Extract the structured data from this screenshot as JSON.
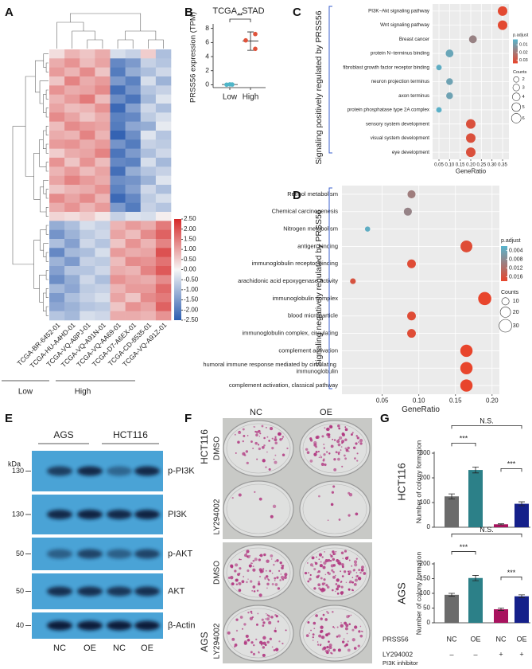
{
  "chart_data": [
    {
      "type": "heatmap",
      "label": "A",
      "categories": [
        "TCGA-BR-6452-01",
        "TCGA-HU-A4HD-01",
        "TCGA-VQ-A8PJ-01",
        "TCGA-VQ-A91N-01",
        "TCGA-VQ-AA69-01",
        "TCGA-D7-A6EX-01",
        "TCGA-CD-8535-01",
        "TCGA-VQ-A91Z-01"
      ],
      "groups": [
        "Low",
        "High"
      ],
      "values": [
        [
          0.3,
          0.8,
          0.6,
          0.9,
          -0.4,
          -0.6,
          0.5,
          -0.9
        ],
        [
          0.9,
          1.2,
          0.7,
          1.0,
          -1.8,
          -1.5,
          -0.6,
          -0.8
        ],
        [
          1.1,
          0.8,
          1.3,
          0.6,
          -2.0,
          -1.2,
          -0.9,
          -0.5
        ],
        [
          0.6,
          1.4,
          0.9,
          1.1,
          -1.5,
          -1.9,
          -0.4,
          -1.1
        ],
        [
          1.2,
          0.9,
          1.0,
          1.3,
          -2.2,
          -1.6,
          -0.8,
          -0.6
        ],
        [
          0.8,
          1.1,
          1.5,
          0.7,
          -1.7,
          -2.1,
          -1.0,
          -0.3
        ],
        [
          1.0,
          0.7,
          0.8,
          1.2,
          -2.3,
          -1.4,
          -0.5,
          -0.9
        ],
        [
          1.3,
          1.0,
          0.6,
          0.9,
          -1.9,
          -1.8,
          -0.7,
          -0.4
        ],
        [
          0.7,
          1.3,
          1.1,
          1.0,
          -2.0,
          -1.3,
          -1.2,
          -0.2
        ],
        [
          0.9,
          0.8,
          1.4,
          0.8,
          -2.4,
          -1.7,
          -0.3,
          -0.8
        ],
        [
          1.1,
          1.2,
          0.9,
          1.1,
          -1.6,
          -2.0,
          -0.6,
          -0.7
        ],
        [
          0.5,
          0.9,
          1.0,
          1.4,
          -2.1,
          -1.5,
          -0.9,
          -0.5
        ],
        [
          1.2,
          0.6,
          1.2,
          0.7,
          -1.8,
          -1.9,
          -0.4,
          -1.0
        ],
        [
          0.8,
          1.1,
          0.7,
          1.0,
          -2.2,
          -1.2,
          -0.8,
          -0.6
        ],
        [
          1.0,
          1.4,
          1.1,
          0.9,
          -1.7,
          -1.6,
          -1.1,
          -0.3
        ],
        [
          0.6,
          0.8,
          0.9,
          1.2,
          -1.9,
          -1.4,
          -0.5,
          -0.9
        ],
        [
          1.3,
          1.0,
          1.3,
          0.8,
          -2.3,
          -1.8,
          -0.7,
          -0.4
        ],
        [
          0.9,
          1.2,
          0.8,
          1.1,
          -1.5,
          -2.0,
          -0.6,
          -0.8
        ],
        [
          0.4,
          0.3,
          0.5,
          0.2,
          -0.6,
          -0.3,
          -0.4,
          0.1
        ],
        [
          -1.2,
          -0.9,
          -0.4,
          -0.6,
          0.8,
          1.1,
          0.9,
          1.5
        ],
        [
          -1.6,
          -1.1,
          -0.7,
          -0.5,
          1.0,
          0.7,
          1.3,
          1.8
        ],
        [
          -0.9,
          -1.4,
          -0.5,
          -0.8,
          0.6,
          1.2,
          0.8,
          1.4
        ],
        [
          -1.8,
          -1.0,
          -0.9,
          -0.4,
          1.1,
          0.9,
          1.0,
          2.0
        ],
        [
          -1.1,
          -1.5,
          -0.6,
          -0.7,
          0.7,
          1.3,
          1.2,
          1.6
        ],
        [
          -1.4,
          -0.8,
          -0.8,
          -0.5,
          0.9,
          0.8,
          1.4,
          1.9
        ],
        [
          -1.7,
          -1.2,
          -0.5,
          -0.9,
          1.2,
          1.0,
          0.9,
          1.3
        ],
        [
          -1.0,
          -1.3,
          -0.7,
          -0.6,
          0.8,
          1.1,
          1.1,
          1.7
        ],
        [
          -1.5,
          -0.9,
          -0.6,
          -0.4,
          1.0,
          0.6,
          1.3,
          1.5
        ],
        [
          -1.3,
          -1.1,
          -0.8,
          -0.7,
          0.6,
          1.2,
          1.0,
          1.8
        ],
        [
          -0.8,
          -1.0,
          -0.4,
          -0.5,
          0.9,
          0.9,
          0.8,
          1.2
        ]
      ],
      "clim": [
        -2.5,
        2.5
      ],
      "cticks": [
        {
          "value": 2.5,
          "label": "2.50"
        },
        {
          "value": 2,
          "label": "2.00"
        },
        {
          "value": 1.5,
          "label": "1.50"
        },
        {
          "value": 1,
          "label": "1.00"
        },
        {
          "value": 0.5,
          "label": "0.50"
        },
        {
          "value": 0,
          "label": "0.00"
        },
        {
          "value": -0.5,
          "label": "-0.50"
        },
        {
          "value": -1,
          "label": "-1.00"
        },
        {
          "value": -1.5,
          "label": "-1.50"
        },
        {
          "value": -2,
          "label": "-2.00"
        },
        {
          "value": -2.5,
          "label": "-2.50"
        }
      ],
      "colors": [
        "#2c5db0",
        "#f6f6f6",
        "#d62828"
      ]
    },
    {
      "type": "dot",
      "label": "B",
      "title": "TCGA_STAD",
      "ylabel": "PRSS56 expression (TPM)",
      "categories": [
        "Low",
        "High"
      ],
      "points": [
        [
          0.02,
          0.04,
          0.06
        ],
        [
          7.2,
          6.3,
          5.1
        ]
      ],
      "mean": [
        0.04,
        6.2
      ],
      "error": [
        0.02,
        1.3
      ],
      "colors": [
        "#4fb6c9",
        "#e0533b"
      ],
      "ylim": [
        -0.4,
        8.3
      ],
      "yticks": [
        0,
        2,
        4,
        6,
        8
      ],
      "annotation": "**"
    },
    {
      "type": "enrichment",
      "label": "C",
      "ylabel": "Signaling positively regulated by PRSS56",
      "xlabel": "GeneRatio",
      "categories": [
        "PI3K−Akt signaling pathway",
        "Wnt signaling pathway",
        "Breast cancer",
        "protein N−terminus binding",
        "fibroblast growth factor receptor binding",
        "neuron projection terminus",
        "axon terminus",
        "protein phosphatase type 2A complex",
        "sensory system development",
        "visual system development",
        "eye development"
      ],
      "x": [
        0.35,
        0.35,
        0.21,
        0.1,
        0.05,
        0.1,
        0.1,
        0.05,
        0.2,
        0.2,
        0.2
      ],
      "counts": [
        6,
        6,
        4,
        4,
        2,
        3,
        3,
        2,
        6,
        6,
        6
      ],
      "p_adjust": [
        0.004,
        0.004,
        0.02,
        0.03,
        0.032,
        0.029,
        0.029,
        0.033,
        0.006,
        0.006,
        0.006
      ],
      "xlim": [
        0.02,
        0.38
      ],
      "xticks": [
        0.05,
        {
          "value": 0.1,
          "label": "0.10"
        },
        0.15,
        {
          "value": 0.2,
          "label": "0.20"
        },
        0.25,
        {
          "value": 0.3,
          "label": "0.30"
        },
        0.35
      ],
      "color_title": "p.adjust",
      "clim": [
        0.003,
        0.034
      ],
      "cticks": [
        0.03,
        0.02,
        0.01
      ],
      "size_title": "Counts",
      "size_ticks": [
        2,
        3,
        4,
        5,
        6
      ],
      "colors": [
        "#e8452c",
        "#56b4cd"
      ]
    },
    {
      "type": "enrichment",
      "label": "D",
      "ylabel": "Signaling negatively regulated by PRSS56",
      "xlabel": "GeneRatio",
      "categories": [
        "Retinol metabolism",
        "Chemical carcinogenesis",
        "Nitrogen metabolism",
        "antigen binding",
        "immunoglobulin receptor binding",
        "arachidonic acid epoxygenase activity",
        "immunoglobulin complex",
        "blood microparticle",
        "immunoglobulin complex, circulating",
        "complement activation",
        "humoral immune response mediated by circulating immunoglobulin",
        "complement activation, classical pathway"
      ],
      "x": [
        0.09,
        0.085,
        0.03,
        0.165,
        0.09,
        0.01,
        0.19,
        0.09,
        0.09,
        0.165,
        0.165,
        0.165
      ],
      "counts": [
        12,
        12,
        5,
        26,
        14,
        6,
        32,
        14,
        14,
        28,
        28,
        28
      ],
      "p_adjust": [
        0.01,
        0.011,
        0.017,
        0.003,
        0.003,
        0.004,
        0.002,
        0.003,
        0.003,
        0.002,
        0.002,
        0.002
      ],
      "xlim": [
        -0.005,
        0.21
      ],
      "xticks": [
        0.05,
        {
          "value": 0.1,
          "label": "0.10"
        },
        0.15,
        {
          "value": 0.2,
          "label": "0.20"
        }
      ],
      "color_title": "p.adjust",
      "clim": [
        0.002,
        0.018
      ],
      "cticks": [
        0.016,
        0.012,
        0.008,
        0.004
      ],
      "size_title": "Counts",
      "size_ticks": [
        10,
        20,
        30
      ],
      "colors": [
        "#e8452c",
        "#56b4cd"
      ]
    },
    {
      "type": "bar",
      "label": "G",
      "side_label": "HCT116",
      "ylabel": "Number of colony formation",
      "categories": [
        null,
        null,
        null,
        null
      ],
      "values": [
        125,
        232,
        12,
        95
      ],
      "error": [
        10,
        12,
        2,
        8
      ],
      "colors": [
        "#6b6b6b",
        "#2c8088",
        "#a8125e",
        "#15208a"
      ],
      "ylim": [
        0,
        300
      ],
      "yticks": [
        0,
        100,
        200,
        300
      ],
      "annotations": [
        "***",
        "N.S.",
        "***"
      ]
    },
    {
      "type": "bar",
      "side_label": "AGS",
      "ylabel": "Number of colony formation",
      "categories": [
        null,
        null,
        null,
        null
      ],
      "values": [
        95,
        152,
        46,
        90
      ],
      "error": [
        5,
        9,
        4,
        5
      ],
      "colors": [
        "#6b6b6b",
        "#2c8088",
        "#a8125e",
        "#15208a"
      ],
      "ylim": [
        0,
        200
      ],
      "yticks": [
        0,
        50,
        100,
        150,
        200
      ],
      "annotations": [
        "***",
        "N.S.",
        "***"
      ]
    }
  ],
  "treatment_table": {
    "rows": [
      {
        "label": "PRSS56",
        "cells": [
          "NC",
          "OE",
          "NC",
          "OE"
        ]
      },
      {
        "label": "LY294002",
        "note": "PI3K inhibitor",
        "cells": [
          "–",
          "–",
          "+",
          "+"
        ]
      }
    ]
  },
  "blot": {
    "label": "E",
    "unit": "kDa",
    "groups": [
      "AGS",
      "HCT116"
    ],
    "lanes": [
      "NC",
      "OE",
      "NC",
      "OE"
    ],
    "rows": [
      {
        "marker": "130",
        "protein": "p-PI3K"
      },
      {
        "marker": "130",
        "protein": "PI3K"
      },
      {
        "marker": "50",
        "protein": "p-AKT"
      },
      {
        "marker": "50",
        "protein": "AKT"
      },
      {
        "marker": "40",
        "protein": "β-Actin"
      }
    ]
  },
  "colony_photo": {
    "label": "F",
    "columns": [
      "NC",
      "OE"
    ],
    "blocks": [
      {
        "cell_line": "HCT116",
        "rows": [
          "DMSO",
          "LY294002"
        ]
      },
      {
        "cell_line": "AGS",
        "rows": [
          "DMSO",
          "LY294002"
        ]
      }
    ]
  }
}
